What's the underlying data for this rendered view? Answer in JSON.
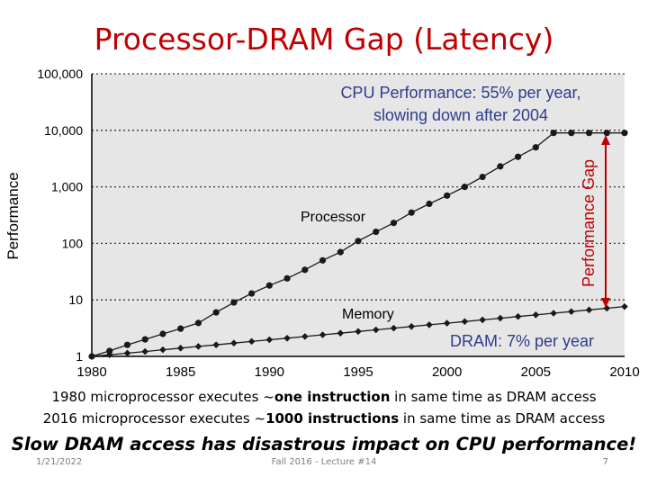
{
  "slide": {
    "title": "Processor-DRAM Gap (Latency)",
    "caption1": {
      "pre": "1980 microprocessor executes ~",
      "bold": "one instruction",
      "post": " in same time as DRAM access"
    },
    "caption2": {
      "pre": "2016 microprocessor executes ~",
      "bold": "1000 instructions",
      "post": " in same time as DRAM access"
    },
    "takeaway": "Slow DRAM access has disastrous impact on CPU performance!",
    "footer": {
      "date": "1/21/2022",
      "course": "Fall 2016 - Lecture #14",
      "page": "7"
    }
  },
  "chart_data": {
    "type": "line",
    "ylabel": "Performance",
    "xlabel": "",
    "yscale": "log",
    "xlim": [
      1980,
      2010
    ],
    "ylim": [
      1,
      100000
    ],
    "xticks": [
      1980,
      1985,
      1990,
      1995,
      2000,
      2005,
      2010
    ],
    "xtick_labels": [
      "1980",
      "1985",
      "1990",
      "1995",
      "2000",
      "2005",
      "2010"
    ],
    "yticks": [
      1,
      10,
      100,
      1000,
      10000,
      100000
    ],
    "ytick_labels": [
      "1",
      "10",
      "100",
      "1,000",
      "10,000",
      "100,000"
    ],
    "grid": "horizontal dotted",
    "series": [
      {
        "name": "Processor",
        "color": "#1a1a1a",
        "marker": "circle",
        "x": [
          1980,
          1981,
          1982,
          1983,
          1984,
          1985,
          1986,
          1987,
          1988,
          1989,
          1990,
          1991,
          1992,
          1993,
          1994,
          1995,
          1996,
          1997,
          1998,
          1999,
          2000,
          2001,
          2002,
          2003,
          2004,
          2005,
          2006,
          2007,
          2008,
          2009,
          2010
        ],
        "y": [
          1,
          1.25,
          1.6,
          2,
          2.5,
          3.1,
          3.9,
          6,
          9,
          13,
          18,
          24,
          34,
          50,
          70,
          110,
          160,
          230,
          350,
          500,
          700,
          1000,
          1500,
          2300,
          3400,
          5000,
          9000,
          9000,
          9000,
          9000,
          9000
        ]
      },
      {
        "name": "Memory",
        "color": "#1a1a1a",
        "marker": "diamond",
        "x": [
          1980,
          1981,
          1982,
          1983,
          1984,
          1985,
          1986,
          1987,
          1988,
          1989,
          1990,
          1991,
          1992,
          1993,
          1994,
          1995,
          1996,
          1997,
          1998,
          1999,
          2000,
          2001,
          2002,
          2003,
          2004,
          2005,
          2006,
          2007,
          2008,
          2009,
          2010
        ],
        "y": [
          1,
          1.07,
          1.14,
          1.22,
          1.31,
          1.4,
          1.5,
          1.6,
          1.72,
          1.84,
          1.97,
          2.1,
          2.25,
          2.41,
          2.58,
          2.76,
          2.95,
          3.16,
          3.38,
          3.62,
          3.87,
          4.14,
          4.43,
          4.74,
          5.07,
          5.43,
          5.81,
          6.21,
          6.65,
          7.11,
          7.61
        ]
      }
    ],
    "annotations": {
      "cpu_line1": "CPU Performance: 55% per year,",
      "cpu_line2": "slowing down after 2004",
      "processor_label": "Processor",
      "memory_label": "Memory",
      "dram_label": "DRAM: 7% per year",
      "gap_label": "Performance Gap",
      "blue_color": "#2e3c8f",
      "red_color": "#c00000"
    }
  }
}
